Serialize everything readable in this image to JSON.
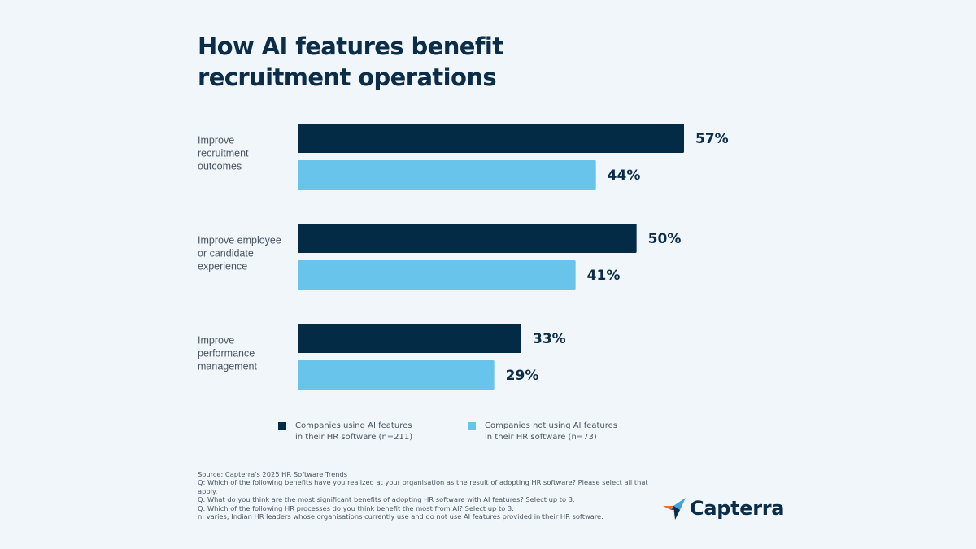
{
  "colors": {
    "background": "#f1f6fb",
    "series_using": "#042b46",
    "series_not_using": "#69c4ec",
    "text_dark": "#0b2d47",
    "text_muted": "#4a5561",
    "logo_orange": "#f26b2a",
    "logo_blue": "#3ea3d9",
    "logo_navy": "#0b2d47"
  },
  "chart_data": {
    "type": "bar",
    "orientation": "horizontal",
    "title": "How AI features benefit recruitment operations",
    "xlabel": "",
    "ylabel": "",
    "value_unit": "%",
    "xlim": [
      0,
      57
    ],
    "grid": false,
    "legend_position": "bottom",
    "categories": [
      [
        "Improve",
        "recruitment",
        "outcomes"
      ],
      [
        "Improve employee",
        "or candidate",
        "experience"
      ],
      [
        "Improve",
        "performance",
        "management"
      ]
    ],
    "series": [
      {
        "name": "Companies using AI features in their HR software (n=211)",
        "legend_lines": [
          "Companies using AI features",
          "in their HR software (n=211)"
        ],
        "color": "#042b46",
        "values": [
          57,
          50,
          33
        ],
        "labels": [
          "57%",
          "50%",
          "33%"
        ]
      },
      {
        "name": "Companies not using AI features in their HR software (n=73)",
        "legend_lines": [
          "Companies not using AI features",
          "in their HR software (n=73)"
        ],
        "color": "#69c4ec",
        "values": [
          44,
          41,
          29
        ],
        "labels": [
          "44%",
          "41%",
          "29%"
        ]
      }
    ]
  },
  "header": {
    "title": "How AI features benefit recruitment operations"
  },
  "legend": {
    "items": [
      {
        "line1": "Companies using AI features",
        "line2": "in their HR software (n=211)"
      },
      {
        "line1": "Companies not using AI features",
        "line2": "in their HR software (n=73)"
      }
    ]
  },
  "footnote": {
    "lines": [
      "Source: Capterra's 2025 HR Software Trends",
      "Q: Which of the following benefits have you realized at your organisation as the result of adopting HR software? Please select all that apply.",
      "Q: What do you think are the most significant benefits of adopting HR software with AI features? Select up to 3.",
      "Q: Which of the following HR processes do you think benefit the most from AI? Select up to 3.",
      "n: varies; Indian HR leaders whose organisations currently use and do not use AI features provided in their HR software."
    ]
  },
  "logo": {
    "text": "Capterra",
    "icon": "capterra-arrow-icon"
  }
}
